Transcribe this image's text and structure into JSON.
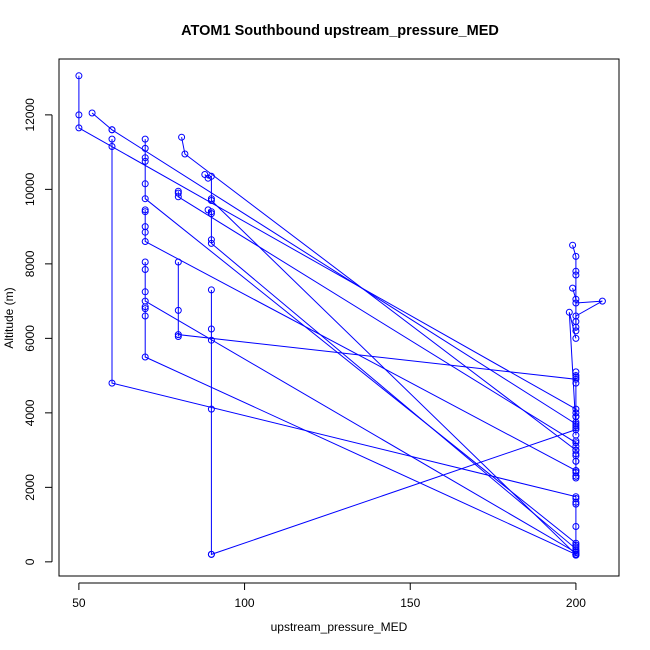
{
  "chart_data": {
    "type": "line",
    "title": "ATOM1 Southbound upstream_pressure_MED",
    "xlabel": "upstream_pressure_MED",
    "ylabel": "Altitude (m)",
    "xlim": [
      44,
      213
    ],
    "ylim": [
      -380,
      13500
    ],
    "x_ticks": [
      50,
      100,
      150,
      200
    ],
    "y_ticks": [
      0,
      2000,
      4000,
      6000,
      8000,
      10000,
      12000
    ],
    "grid": false,
    "legend": "none",
    "series_color": "#0000ff",
    "marker": "open-circle",
    "series": [
      {
        "x": [
          50,
          50,
          50,
          200,
          200,
          200,
          198,
          200
        ],
        "y": [
          13050,
          12000,
          11650,
          4100,
          3900,
          3600,
          6700,
          6000
        ]
      },
      {
        "x": [
          54,
          60,
          60,
          200,
          200
        ],
        "y": [
          12050,
          11600,
          11600,
          3700,
          3400
        ]
      },
      {
        "x": [
          60,
          60,
          60,
          200,
          200
        ],
        "y": [
          11350,
          11150,
          4800,
          1750,
          1600
        ]
      },
      {
        "x": [
          70,
          70,
          70,
          70,
          70,
          70,
          200,
          200,
          200
        ],
        "y": [
          11350,
          11100,
          10850,
          10750,
          10150,
          9750,
          500,
          400,
          300
        ]
      },
      {
        "x": [
          70,
          70,
          70,
          70,
          70,
          200,
          200,
          200,
          200
        ],
        "y": [
          9450,
          9400,
          9000,
          8850,
          8600,
          2450,
          2400,
          2300,
          2300
        ]
      },
      {
        "x": [
          70,
          70,
          70,
          70,
          200,
          200
        ],
        "y": [
          8050,
          7850,
          7250,
          7000,
          250,
          200
        ]
      },
      {
        "x": [
          70,
          70,
          70,
          70,
          200,
          200
        ],
        "y": [
          6850,
          6800,
          6600,
          5500,
          200,
          180
        ]
      },
      {
        "x": [
          81,
          82,
          200,
          200,
          200
        ],
        "y": [
          11400,
          10950,
          3000,
          2900,
          2700
        ]
      },
      {
        "x": [
          80,
          80,
          80,
          200,
          200
        ],
        "y": [
          9950,
          9900,
          9800,
          3200,
          3100
        ]
      },
      {
        "x": [
          80,
          80,
          80,
          80,
          200,
          200
        ],
        "y": [
          8050,
          6750,
          6050,
          6100,
          4900,
          5000
        ]
      },
      {
        "x": [
          88,
          89,
          90,
          90,
          90,
          200,
          200
        ],
        "y": [
          10400,
          10300,
          10350,
          9750,
          9700,
          200,
          180
        ]
      },
      {
        "x": [
          89,
          90,
          90,
          90,
          90,
          200,
          200
        ],
        "y": [
          9450,
          9400,
          9350,
          8650,
          8550,
          350,
          300
        ]
      },
      {
        "x": [
          90,
          90,
          90,
          90,
          90,
          90,
          200
        ],
        "y": [
          7300,
          6250,
          5950,
          4100,
          200,
          200,
          3550
        ]
      },
      {
        "x": [
          199,
          200,
          200,
          200,
          200,
          200
        ],
        "y": [
          8500,
          8200,
          7800,
          7700,
          6450,
          6300
        ]
      },
      {
        "x": [
          199,
          200,
          200,
          208,
          200,
          200
        ],
        "y": [
          7350,
          7050,
          6950,
          7000,
          6600,
          6200
        ]
      },
      {
        "x": [
          200,
          200,
          200,
          200,
          200,
          200,
          200
        ],
        "y": [
          5100,
          4950,
          4800,
          4000,
          3900,
          3750,
          3650
        ]
      },
      {
        "x": [
          200,
          200,
          200,
          200,
          200,
          200,
          200
        ],
        "y": [
          3250,
          3000,
          2850,
          2700,
          2450,
          2300,
          2250
        ]
      },
      {
        "x": [
          200,
          200,
          200,
          200,
          200,
          200
        ],
        "y": [
          1700,
          1550,
          950,
          450,
          250,
          200
        ]
      }
    ]
  }
}
